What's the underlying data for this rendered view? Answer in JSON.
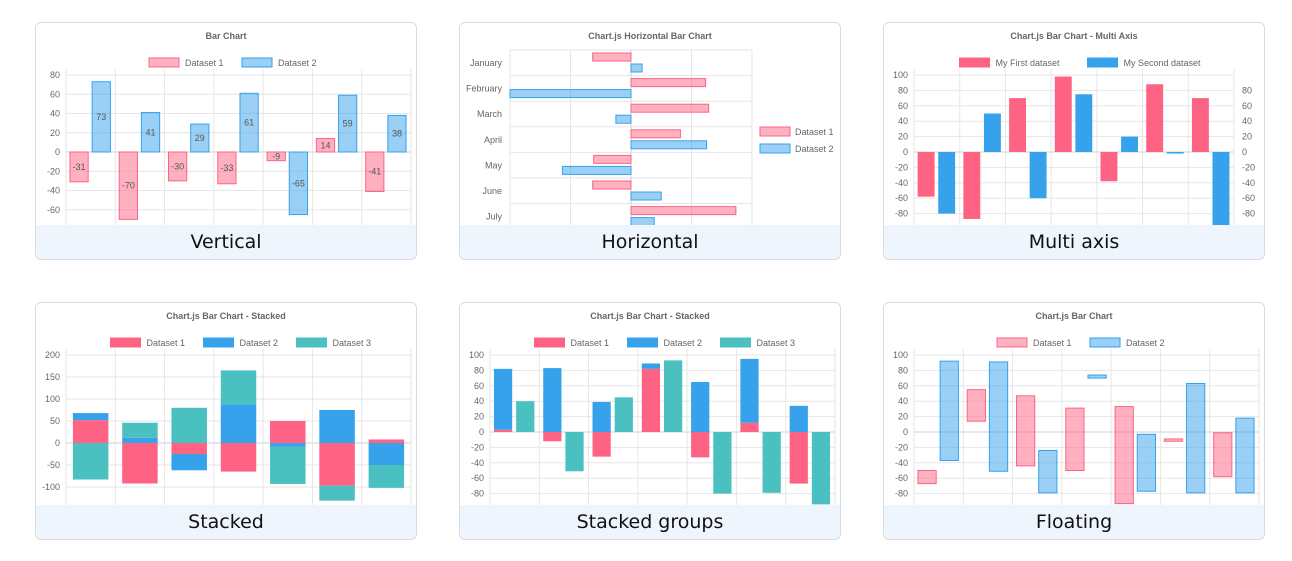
{
  "colors": {
    "red": "#ff6384",
    "redLight": "rgba(255,99,132,0.5)",
    "blue": "#36a2eb",
    "blueLight": "rgba(54,162,235,0.5)",
    "teal": "#4bc0c0",
    "grid": "#e6e6e6"
  },
  "cards": [
    {
      "caption": "Vertical",
      "chart_data": {
        "type": "bar",
        "title": "Bar Chart",
        "legend_position": "top",
        "categories": [
          "",
          "",
          "",
          "",
          "",
          "",
          ""
        ],
        "series": [
          {
            "name": "Dataset 1",
            "color": "red",
            "light": true,
            "values": [
              -31,
              -70,
              -30,
              -33,
              -9,
              14,
              -41
            ]
          },
          {
            "name": "Dataset 2",
            "color": "blue",
            "light": true,
            "values": [
              73,
              41,
              29,
              61,
              -65,
              59,
              38
            ]
          }
        ],
        "ylim": [
          -80,
          80
        ],
        "yticks": [
          80,
          60,
          40,
          20,
          0,
          -20,
          -40,
          -60
        ],
        "data_labels": true,
        "grid": true
      }
    },
    {
      "caption": "Horizontal",
      "chart_data": {
        "type": "bar",
        "orientation": "horizontal",
        "title": "Chart.js Horizontal Bar Chart",
        "legend_position": "right",
        "categories": [
          "January",
          "February",
          "March",
          "April",
          "May",
          "June",
          "July"
        ],
        "series": [
          {
            "name": "Dataset 1",
            "color": "red",
            "light": true,
            "values": [
              -38,
              74,
              77,
              49,
              -37,
              -38,
              104
            ]
          },
          {
            "name": "Dataset 2",
            "color": "blue",
            "light": true,
            "values": [
              11,
              -120,
              -15,
              75,
              -68,
              30,
              23
            ]
          }
        ],
        "xlim": [
          -120,
          120
        ],
        "grid": true
      }
    },
    {
      "caption": "Multi axis",
      "chart_data": {
        "type": "bar",
        "title": "Chart.js Bar Chart - Multi Axis",
        "legend_position": "top",
        "categories": [
          "",
          "",
          "",
          "",
          "",
          "",
          ""
        ],
        "series": [
          {
            "name": "My First dataset",
            "color": "red",
            "light": false,
            "axis": "left",
            "values": [
              -58,
              -87,
              70,
              98,
              -38,
              88,
              70
            ]
          },
          {
            "name": "My Second dataset",
            "color": "blue",
            "light": false,
            "axis": "right",
            "values": [
              -80,
              50,
              -60,
              75,
              20,
              -2,
              -100
            ]
          }
        ],
        "ylim_left": [
          -100,
          100
        ],
        "yticks_left": [
          100,
          80,
          60,
          40,
          20,
          0,
          -20,
          -40,
          -60,
          -80
        ],
        "ylim_right": [
          -100,
          80
        ],
        "yticks_right": [
          80,
          60,
          40,
          20,
          0,
          -20,
          -40,
          -60,
          -80
        ],
        "grid": true
      }
    },
    {
      "caption": "Stacked",
      "chart_data": {
        "type": "bar",
        "stacked": true,
        "title": "Chart.js Bar Chart - Stacked",
        "legend_position": "top",
        "categories": [
          "",
          "",
          "",
          "",
          "",
          "",
          ""
        ],
        "series": [
          {
            "name": "Dataset 1",
            "color": "red",
            "light": false,
            "values": [
              52,
              -92,
              -25,
              -65,
              50,
              -97,
              8
            ]
          },
          {
            "name": "Dataset 2",
            "color": "blue",
            "light": false,
            "values": [
              16,
              12,
              -37,
              88,
              -8,
              75,
              -50
            ]
          },
          {
            "name": "Dataset 3",
            "color": "teal",
            "light": false,
            "values": [
              -83,
              34,
              80,
              77,
              -85,
              -34,
              -52
            ]
          }
        ],
        "ylim": [
          -150,
          200
        ],
        "yticks": [
          200,
          150,
          100,
          50,
          0,
          -50,
          -100
        ],
        "grid": true
      }
    },
    {
      "caption": "Stacked groups",
      "chart_data": {
        "type": "bar",
        "stacked": true,
        "grouped": true,
        "title": "Chart.js Bar Chart - Stacked",
        "legend_position": "top",
        "categories": [
          "",
          "",
          "",
          "",
          "",
          "",
          ""
        ],
        "series": [
          {
            "name": "Dataset 1",
            "color": "red",
            "light": false,
            "stack": 0,
            "values": [
              3,
              -12,
              -32,
              82,
              -33,
              12,
              -67
            ]
          },
          {
            "name": "Dataset 2",
            "color": "blue",
            "light": false,
            "stack": 0,
            "values": [
              79,
              83,
              39,
              7,
              65,
              83,
              34
            ]
          },
          {
            "name": "Dataset 3",
            "color": "teal",
            "light": false,
            "stack": 1,
            "values": [
              40,
              -51,
              45,
              93,
              -80,
              -79,
              -94
            ]
          }
        ],
        "ylim": [
          -100,
          100
        ],
        "yticks": [
          100,
          80,
          60,
          40,
          20,
          0,
          -20,
          -40,
          -60,
          -80
        ],
        "grid": true
      }
    },
    {
      "caption": "Floating",
      "chart_data": {
        "type": "bar",
        "floating": true,
        "title": "Chart.js Bar Chart",
        "legend_position": "top",
        "categories": [
          "",
          "",
          "",
          "",
          "",
          "",
          ""
        ],
        "series": [
          {
            "name": "Dataset 1",
            "color": "red",
            "light": true,
            "ranges": [
              [
                -67,
                -50
              ],
              [
                14,
                55
              ],
              [
                -44,
                47
              ],
              [
                -50,
                31
              ],
              [
                -93,
                33
              ],
              [
                -12,
                -9
              ],
              [
                -58,
                -1
              ]
            ]
          },
          {
            "name": "Dataset 2",
            "color": "blue",
            "light": true,
            "ranges": [
              [
                -37,
                92
              ],
              [
                -51,
                91
              ],
              [
                -79,
                -24
              ],
              [
                70,
                74
              ],
              [
                -77,
                -3
              ],
              [
                -79,
                63
              ],
              [
                -79,
                18
              ]
            ]
          }
        ],
        "ylim": [
          -100,
          100
        ],
        "yticks": [
          100,
          80,
          60,
          40,
          20,
          0,
          -20,
          -40,
          -60,
          -80
        ],
        "grid": true
      }
    }
  ]
}
